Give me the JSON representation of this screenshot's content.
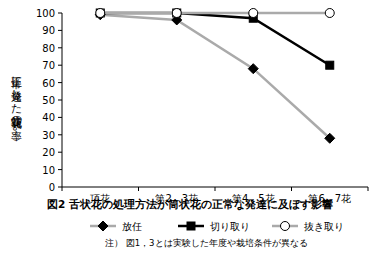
{
  "chart_data": {
    "type": "line",
    "title": "図2 舌状花の処理方法が筒状花の正常な発達に及ぼす影響",
    "y_label": "正常に発達した筒状花の率（%）",
    "note": "注） 図1，3とは実験した年度や栽培条件が異なる",
    "categories": [
      "頂花",
      "第2，3花",
      "第4，5花",
      "第6，7花"
    ],
    "series": [
      {
        "name": "放任",
        "color": "#aaaaaa",
        "marker": "diamond",
        "values": [
          99,
          96,
          68,
          28
        ]
      },
      {
        "name": "切り取り",
        "color": "#000000",
        "marker": "square",
        "values": [
          100,
          100,
          97,
          70
        ]
      },
      {
        "name": "抜き取り",
        "color": "#aaaaaa",
        "marker": "circle_open",
        "values": [
          100,
          100,
          100,
          100
        ]
      }
    ],
    "ylim": [
      0,
      100
    ],
    "yticks": [
      0,
      10,
      20,
      30,
      40,
      50,
      60,
      70,
      80,
      90,
      100
    ],
    "grid": false,
    "legend": "bottom"
  }
}
